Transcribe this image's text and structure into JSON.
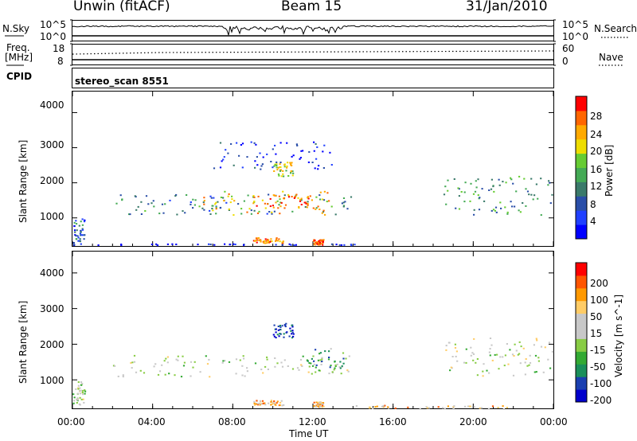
{
  "header": {
    "station": "Unwin (fitACF)",
    "beam": "Beam 15",
    "date": "31/Jan/2010"
  },
  "status_panels": {
    "nsky_label": "N.Sky",
    "nsky_ticks": [
      "10^5",
      "10^0"
    ],
    "nsearch_label": "N.Search",
    "nsearch_ticks": [
      "10^5",
      "10^0"
    ],
    "freq_label": "Freq.",
    "freq_unit": "[MHz]",
    "freq_ticks": [
      "18",
      "8"
    ],
    "nave_label": "Nave",
    "nave_ticks": [
      "60",
      "0"
    ],
    "cpid_label": "CPID",
    "cpid_value": "stereo_scan 8551"
  },
  "x_axis": {
    "label": "Time UT",
    "ticks": [
      "00:00",
      "04:00",
      "08:00",
      "12:00",
      "16:00",
      "20:00",
      "00:00"
    ]
  },
  "chart_data": [
    {
      "type": "heatmap",
      "name": "power",
      "ylabel": "Slant Range [km]",
      "yticks": [
        "4000",
        "3000",
        "2000",
        "1000"
      ],
      "ylim": [
        200,
        4600
      ],
      "xlim_hours": [
        0,
        24
      ],
      "colorbar": {
        "label": "Power [dB]",
        "ticks": [
          "28",
          "24",
          "20",
          "16",
          "12",
          "8",
          "4"
        ],
        "colors": [
          "#0000ff",
          "#2040ff",
          "#2a4ea8",
          "#3a7a6a",
          "#44aa55",
          "#66cc33",
          "#eedd00",
          "#ffaa00",
          "#ff6600",
          "#ff0000"
        ]
      },
      "regions": [
        {
          "t": [
            0,
            0.6
          ],
          "r": [
            300,
            1000
          ],
          "level": 0.25
        },
        {
          "t": [
            0,
            15
          ],
          "r": [
            240,
            280
          ],
          "level": 0.1
        },
        {
          "t": [
            2,
            14
          ],
          "r": [
            1100,
            1700
          ],
          "level": 0.35
        },
        {
          "t": [
            6.5,
            13
          ],
          "r": [
            1100,
            1800
          ],
          "level": 0.7
        },
        {
          "t": [
            9,
            12
          ],
          "r": [
            1300,
            1700
          ],
          "level": 0.85
        },
        {
          "t": [
            9,
            10.5
          ],
          "r": [
            300,
            450
          ],
          "level": 0.8
        },
        {
          "t": [
            12,
            12.5
          ],
          "r": [
            250,
            400
          ],
          "level": 0.85
        },
        {
          "t": [
            10,
            11
          ],
          "r": [
            2200,
            2600
          ],
          "level": 0.6
        },
        {
          "t": [
            7,
            13
          ],
          "r": [
            2400,
            3200
          ],
          "level": 0.15
        },
        {
          "t": [
            18.5,
            24
          ],
          "r": [
            1100,
            2200
          ],
          "level": 0.4
        }
      ]
    },
    {
      "type": "heatmap",
      "name": "velocity",
      "ylabel": "Slant Range [km]",
      "yticks": [
        "4000",
        "3000",
        "2000",
        "1000"
      ],
      "ylim": [
        200,
        4600
      ],
      "xlim_hours": [
        0,
        24
      ],
      "colorbar": {
        "label": "Velocity [m s^-1]",
        "ticks": [
          "200",
          "100",
          "50",
          "15",
          "-15",
          "-50",
          "-100",
          "-200"
        ],
        "colors": [
          "#ff0000",
          "#ff5500",
          "#ff9900",
          "#ffcc66",
          "#c8c8c8",
          "#c8c8c8",
          "#88cc44",
          "#33aa33",
          "#1a8f5a",
          "#1a3fb0",
          "#0000cc"
        ]
      },
      "regions": [
        {
          "t": [
            0,
            0.6
          ],
          "r": [
            300,
            1000
          ],
          "level": 0.5
        },
        {
          "t": [
            2,
            14
          ],
          "r": [
            1100,
            1700
          ],
          "level": 0.5
        },
        {
          "t": [
            9,
            10.5
          ],
          "r": [
            300,
            450
          ],
          "level": 0.3
        },
        {
          "t": [
            12,
            12.5
          ],
          "r": [
            250,
            400
          ],
          "level": 0.3
        },
        {
          "t": [
            10,
            11
          ],
          "r": [
            2200,
            2600
          ],
          "level": 0.9
        },
        {
          "t": [
            11.5,
            13.5
          ],
          "r": [
            1200,
            1900
          ],
          "level": 0.7
        },
        {
          "t": [
            18.5,
            24
          ],
          "r": [
            1100,
            2200
          ],
          "level": 0.5
        },
        {
          "t": [
            14,
            22
          ],
          "r": [
            200,
            300
          ],
          "level": 0.3
        }
      ]
    }
  ]
}
